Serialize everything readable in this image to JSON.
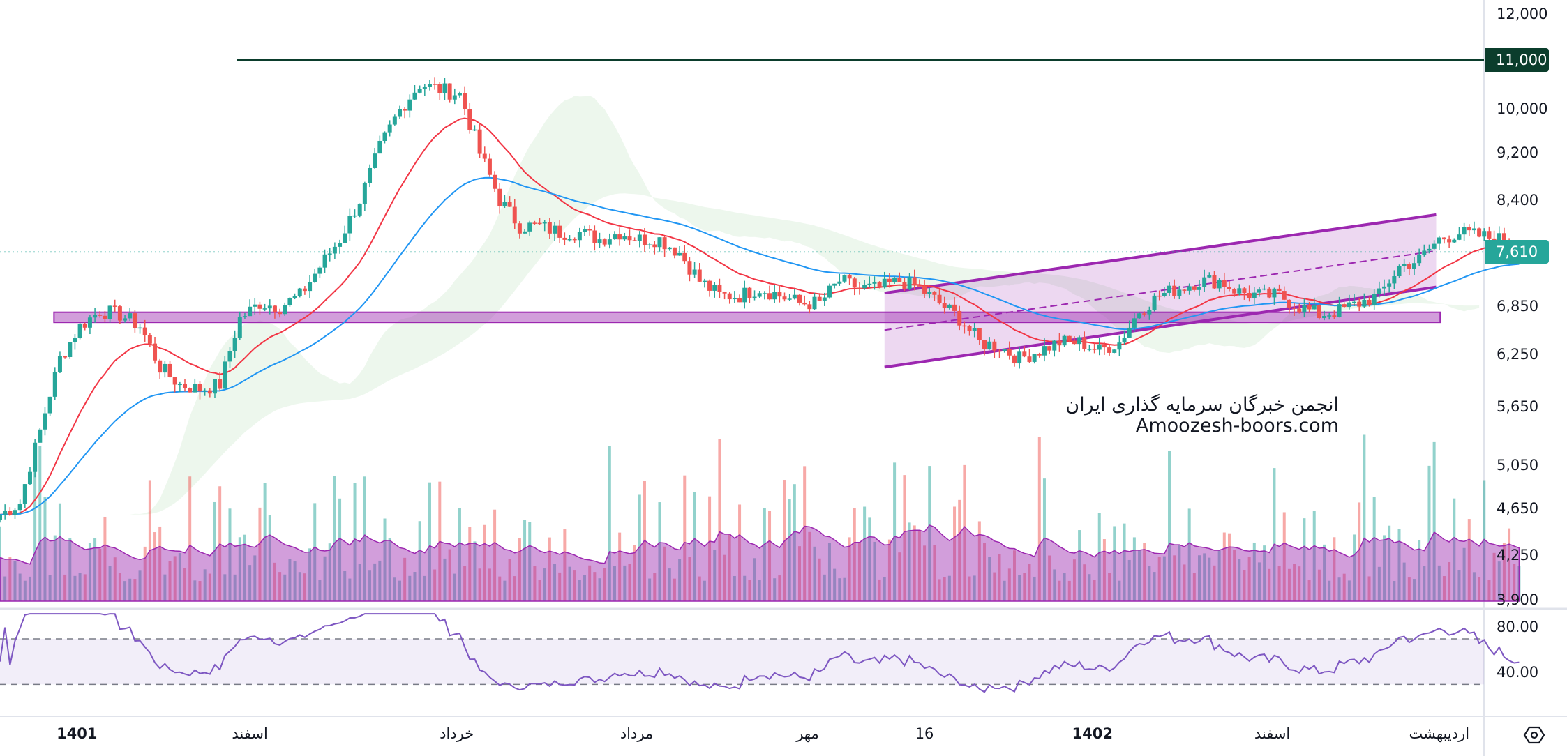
{
  "chart_data": {
    "type": "candlestick",
    "y_scale": "log",
    "ylim": [
      3900,
      12000
    ],
    "y_ticks": [
      "12,000",
      "10,000",
      "9,200",
      "8,400",
      "6,850",
      "6,250",
      "5,650",
      "5,050",
      "4,650",
      "4,250",
      "3,900"
    ],
    "y_tick_values": [
      12000,
      10000,
      9200,
      8400,
      6850,
      6250,
      5650,
      5050,
      4650,
      4250,
      3900
    ],
    "x_ticks": [
      {
        "label": "1401",
        "index": 3.85
      },
      {
        "label": "اسفند",
        "index": 12.5
      },
      {
        "label": "خرداد",
        "index": 22.85
      },
      {
        "label": "مرداد",
        "index": 31.85
      },
      {
        "label": "مهر",
        "index": 40.4
      },
      {
        "label": "16",
        "index": 46.25
      },
      {
        "label": "1402",
        "index": 54.65
      },
      {
        "label": "اسفند",
        "index": 63.65
      },
      {
        "label": "اردیبهشت",
        "index": 72
      }
    ],
    "closes": [
      4600,
      4700,
      5400,
      6200,
      6600,
      6800,
      6750,
      6600,
      6100,
      5900,
      5850,
      5900,
      6700,
      6900,
      6850,
      7000,
      7400,
      7800,
      8400,
      9300,
      10000,
      10500,
      10400,
      10300,
      9200,
      8400,
      8000,
      8000,
      7900,
      7900,
      7800,
      7900,
      7800,
      7800,
      7600,
      7200,
      7000,
      7000,
      7100,
      7000,
      6900,
      6900,
      7200,
      7100,
      7100,
      7200,
      7100,
      6900,
      6700,
      6400,
      6350,
      6200,
      6300,
      6400,
      6400,
      6300,
      6400,
      6800,
      7000,
      7100,
      7200,
      7200,
      7050,
      7000,
      7000,
      6850,
      6750,
      6800,
      6900,
      7000,
      7400,
      7500,
      7800,
      7900,
      7850,
      7800,
      7610
    ],
    "last_price": "7,610",
    "last_price_value": 7610,
    "up_color": "#26a69a",
    "down_color": "#ef5350",
    "indicators": {
      "ema_short_color": "#f23645",
      "ema_long_color": "#2196f3",
      "cloud_up_color": "#e8f5e9",
      "cloud_down_color": "#fde8e8",
      "volume_ma_color": "#9c27b0",
      "rsi": {
        "levels": [
          70,
          30
        ],
        "ticks": [
          "80.00",
          "40.00"
        ],
        "tick_values": [
          80,
          40
        ],
        "color": "#7e57c2"
      }
    },
    "drawings": {
      "horizontal_line": {
        "price": 11000,
        "label": "11,000",
        "color": "#0b3d2c",
        "from_index": 11.85
      },
      "zone": {
        "price_low": 6650,
        "price_high": 6780,
        "from_index": 2.7,
        "to_index": 72.05,
        "color": "#9c27b0"
      },
      "channel": {
        "from_index": 44.25,
        "to_index": 71.85,
        "upper": [
          7034,
          8175
        ],
        "lower": [
          6102,
          7115
        ],
        "color": "#9c27b0"
      }
    }
  },
  "watermark": {
    "line1": "انجمن خبرگان سرمایه گذاری ایران",
    "line2": "Amoozesh-boors.com"
  },
  "settings_icon": "gear-hexagon-icon"
}
